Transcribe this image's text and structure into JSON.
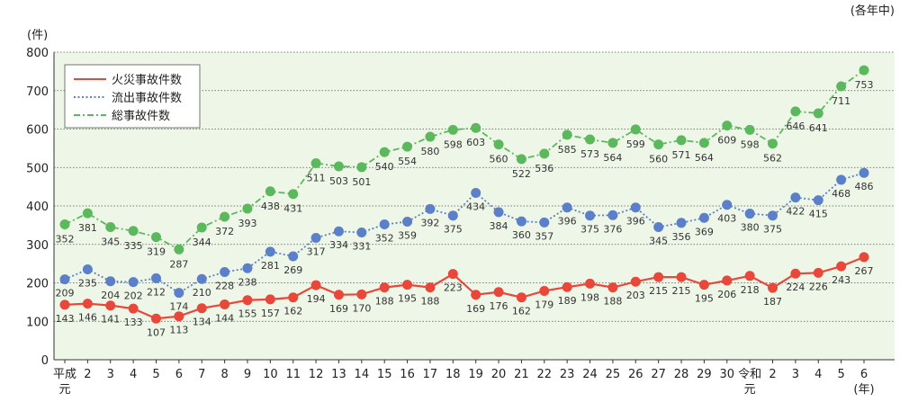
{
  "unit_note": "(各年中)",
  "y_unit": "(件)",
  "x_unit": "(年)",
  "colors": {
    "fire": "#e8473a",
    "outflow": "#5b7fc8",
    "total": "#5cb85c",
    "plot_bg": "#eef6e8"
  },
  "chart_data": {
    "type": "line",
    "x": [
      "平成元",
      "2",
      "3",
      "4",
      "5",
      "6",
      "7",
      "8",
      "9",
      "10",
      "11",
      "12",
      "13",
      "14",
      "15",
      "16",
      "17",
      "18",
      "19",
      "20",
      "21",
      "22",
      "23",
      "24",
      "25",
      "26",
      "27",
      "28",
      "29",
      "30",
      "令和元",
      "2",
      "3",
      "4",
      "5",
      "6"
    ],
    "x_tick_labels": [
      {
        "line1": "平成",
        "line2": "元"
      },
      {
        "line1": "2",
        "line2": ""
      },
      {
        "line1": "3",
        "line2": ""
      },
      {
        "line1": "4",
        "line2": ""
      },
      {
        "line1": "5",
        "line2": ""
      },
      {
        "line1": "6",
        "line2": ""
      },
      {
        "line1": "7",
        "line2": ""
      },
      {
        "line1": "8",
        "line2": ""
      },
      {
        "line1": "9",
        "line2": ""
      },
      {
        "line1": "10",
        "line2": ""
      },
      {
        "line1": "11",
        "line2": ""
      },
      {
        "line1": "12",
        "line2": ""
      },
      {
        "line1": "13",
        "line2": ""
      },
      {
        "line1": "14",
        "line2": ""
      },
      {
        "line1": "15",
        "line2": ""
      },
      {
        "line1": "16",
        "line2": ""
      },
      {
        "line1": "17",
        "line2": ""
      },
      {
        "line1": "18",
        "line2": ""
      },
      {
        "line1": "19",
        "line2": ""
      },
      {
        "line1": "20",
        "line2": ""
      },
      {
        "line1": "21",
        "line2": ""
      },
      {
        "line1": "22",
        "line2": ""
      },
      {
        "line1": "23",
        "line2": ""
      },
      {
        "line1": "24",
        "line2": ""
      },
      {
        "line1": "25",
        "line2": ""
      },
      {
        "line1": "26",
        "line2": ""
      },
      {
        "line1": "27",
        "line2": ""
      },
      {
        "line1": "28",
        "line2": ""
      },
      {
        "line1": "29",
        "line2": ""
      },
      {
        "line1": "30",
        "line2": ""
      },
      {
        "line1": "令和",
        "line2": "元"
      },
      {
        "line1": "2",
        "line2": ""
      },
      {
        "line1": "3",
        "line2": ""
      },
      {
        "line1": "4",
        "line2": ""
      },
      {
        "line1": "5",
        "line2": ""
      },
      {
        "line1": "6",
        "line2": ""
      }
    ],
    "series": [
      {
        "name": "火災事故件数",
        "key": "fire",
        "dash": "solid",
        "values": [
          143,
          146,
          141,
          133,
          107,
          113,
          134,
          144,
          155,
          157,
          162,
          194,
          169,
          170,
          188,
          195,
          188,
          223,
          169,
          176,
          162,
          179,
          189,
          198,
          188,
          203,
          215,
          215,
          195,
          206,
          218,
          187,
          224,
          226,
          243,
          267
        ]
      },
      {
        "name": "流出事故件数",
        "key": "outflow",
        "dash": "dotted",
        "values": [
          209,
          235,
          204,
          202,
          212,
          174,
          210,
          228,
          238,
          281,
          269,
          317,
          334,
          331,
          352,
          359,
          392,
          375,
          434,
          384,
          360,
          357,
          396,
          375,
          376,
          396,
          345,
          356,
          369,
          403,
          380,
          375,
          422,
          415,
          468,
          486
        ]
      },
      {
        "name": "総事故件数",
        "key": "total",
        "dash": "dashdot",
        "values": [
          352,
          381,
          345,
          335,
          319,
          287,
          344,
          372,
          393,
          438,
          431,
          511,
          503,
          501,
          540,
          554,
          580,
          598,
          603,
          560,
          522,
          536,
          585,
          573,
          564,
          599,
          560,
          571,
          564,
          609,
          598,
          562,
          646,
          641,
          711,
          753
        ]
      }
    ],
    "ylim": [
      0,
      800
    ],
    "yticks": [
      0,
      100,
      200,
      300,
      400,
      500,
      600,
      700,
      800
    ],
    "grid": true,
    "legend": "top-left"
  }
}
